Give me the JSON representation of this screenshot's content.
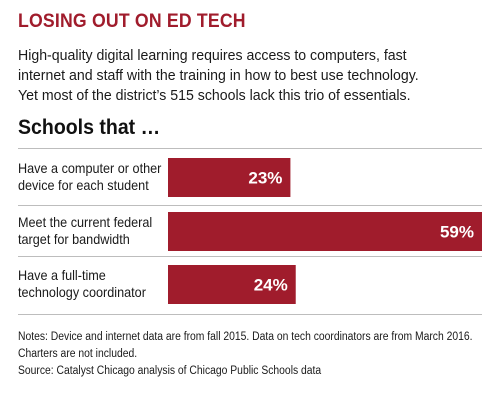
{
  "header": {
    "title": "LOSING OUT ON ED TECH",
    "intro_lines": [
      "High-quality digital learning requires access to computers, fast",
      "internet and staff with the training in how to best use technology.",
      "Yet most of the district’s 515 schools lack this trio of essentials."
    ]
  },
  "chart_data": {
    "type": "bar",
    "orientation": "horizontal",
    "title": "Schools that …",
    "categories": [
      [
        "Have a computer or other",
        "device for each student"
      ],
      [
        "Meet the current federal",
        "target for bandwidth"
      ],
      [
        "Have a full-time",
        "technology coordinator"
      ]
    ],
    "values": [
      23,
      59,
      24
    ],
    "value_labels": [
      "23%",
      "59%",
      "24%"
    ],
    "xlim": [
      0,
      59
    ],
    "bar_color": "#a01c2c",
    "label_color": "#ffffff",
    "grid": false
  },
  "footer": {
    "notes_lines": [
      "Notes: Device and internet data are from fall 2015. Data on tech coordinators are from March 2016.",
      "Charters are not included."
    ],
    "source": "Source: Catalyst Chicago analysis of Chicago Public Schools data"
  }
}
